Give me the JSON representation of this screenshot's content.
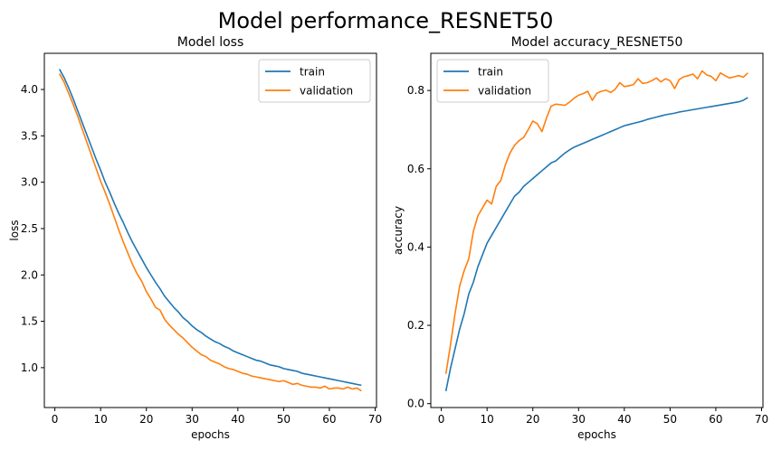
{
  "suptitle": "Model performance_RESNET50",
  "colors": {
    "train": "#1f77b4",
    "validation": "#ff7f0e",
    "axis": "#000000",
    "background": "#ffffff"
  },
  "chart_data": [
    {
      "type": "line",
      "title": "Model loss",
      "xlabel": "epochs",
      "ylabel": "loss",
      "xlim": [
        -2.3,
        70.3
      ],
      "ylim": [
        0.57,
        4.39
      ],
      "xticks": [
        0,
        10,
        20,
        30,
        40,
        50,
        60,
        70
      ],
      "xtick_labels": [
        "0",
        "10",
        "20",
        "30",
        "40",
        "50",
        "60",
        "70"
      ],
      "yticks": [
        1.0,
        1.5,
        2.0,
        2.5,
        3.0,
        3.5,
        4.0
      ],
      "ytick_labels": [
        "1.0",
        "1.5",
        "2.0",
        "2.5",
        "3.0",
        "3.5",
        "4.0"
      ],
      "grid": false,
      "legend": {
        "position": "top-right",
        "entries": [
          "train",
          "validation"
        ]
      },
      "x_start": 1,
      "series": [
        {
          "name": "train",
          "color": "#1f77b4",
          "values": [
            4.22,
            4.13,
            4.02,
            3.9,
            3.77,
            3.64,
            3.51,
            3.38,
            3.25,
            3.13,
            3.0,
            2.89,
            2.77,
            2.66,
            2.56,
            2.45,
            2.35,
            2.26,
            2.17,
            2.08,
            2.0,
            1.92,
            1.85,
            1.77,
            1.71,
            1.65,
            1.6,
            1.54,
            1.5,
            1.45,
            1.41,
            1.38,
            1.34,
            1.31,
            1.28,
            1.26,
            1.23,
            1.21,
            1.18,
            1.16,
            1.14,
            1.12,
            1.1,
            1.08,
            1.07,
            1.05,
            1.03,
            1.02,
            1.01,
            0.99,
            0.98,
            0.97,
            0.96,
            0.94,
            0.93,
            0.92,
            0.91,
            0.9,
            0.89,
            0.88,
            0.87,
            0.86,
            0.85,
            0.84,
            0.83,
            0.82,
            0.81
          ]
        },
        {
          "name": "validation",
          "color": "#ff7f0e",
          "values": [
            4.17,
            4.08,
            3.96,
            3.84,
            3.71,
            3.57,
            3.43,
            3.29,
            3.15,
            3.01,
            2.89,
            2.76,
            2.62,
            2.48,
            2.35,
            2.23,
            2.11,
            2.01,
            1.93,
            1.82,
            1.74,
            1.65,
            1.62,
            1.52,
            1.46,
            1.41,
            1.36,
            1.32,
            1.27,
            1.22,
            1.18,
            1.14,
            1.12,
            1.08,
            1.06,
            1.04,
            1.01,
            0.99,
            0.98,
            0.96,
            0.94,
            0.93,
            0.91,
            0.9,
            0.89,
            0.88,
            0.87,
            0.86,
            0.85,
            0.86,
            0.84,
            0.82,
            0.83,
            0.81,
            0.8,
            0.79,
            0.79,
            0.78,
            0.8,
            0.77,
            0.78,
            0.78,
            0.77,
            0.79,
            0.77,
            0.78,
            0.75
          ]
        }
      ]
    },
    {
      "type": "line",
      "title": "Model accuracy_RESNET50",
      "xlabel": "epochs",
      "ylabel": "accuracy",
      "xlim": [
        -2.3,
        70.3
      ],
      "ylim": [
        -0.01,
        0.895
      ],
      "xticks": [
        0,
        10,
        20,
        30,
        40,
        50,
        60,
        70
      ],
      "xtick_labels": [
        "0",
        "10",
        "20",
        "30",
        "40",
        "50",
        "60",
        "70"
      ],
      "yticks": [
        0.0,
        0.2,
        0.4,
        0.6,
        0.8
      ],
      "ytick_labels": [
        "0.0",
        "0.2",
        "0.4",
        "0.6",
        "0.8"
      ],
      "grid": false,
      "legend": {
        "position": "top-left",
        "entries": [
          "train",
          "validation"
        ]
      },
      "x_start": 1,
      "series": [
        {
          "name": "train",
          "color": "#1f77b4",
          "values": [
            0.032,
            0.09,
            0.14,
            0.19,
            0.23,
            0.28,
            0.31,
            0.35,
            0.38,
            0.41,
            0.43,
            0.45,
            0.47,
            0.49,
            0.51,
            0.53,
            0.54,
            0.555,
            0.565,
            0.575,
            0.585,
            0.595,
            0.605,
            0.615,
            0.62,
            0.63,
            0.64,
            0.648,
            0.655,
            0.66,
            0.665,
            0.67,
            0.675,
            0.68,
            0.685,
            0.69,
            0.695,
            0.7,
            0.705,
            0.71,
            0.713,
            0.716,
            0.719,
            0.722,
            0.726,
            0.729,
            0.732,
            0.735,
            0.738,
            0.74,
            0.742,
            0.745,
            0.747,
            0.749,
            0.751,
            0.753,
            0.755,
            0.757,
            0.759,
            0.761,
            0.763,
            0.765,
            0.767,
            0.769,
            0.771,
            0.775,
            0.782
          ]
        },
        {
          "name": "validation",
          "color": "#ff7f0e",
          "values": [
            0.076,
            0.15,
            0.23,
            0.3,
            0.34,
            0.37,
            0.44,
            0.48,
            0.5,
            0.52,
            0.51,
            0.555,
            0.57,
            0.61,
            0.64,
            0.66,
            0.672,
            0.68,
            0.7,
            0.722,
            0.715,
            0.695,
            0.73,
            0.76,
            0.765,
            0.764,
            0.762,
            0.77,
            0.78,
            0.788,
            0.792,
            0.798,
            0.775,
            0.793,
            0.798,
            0.801,
            0.795,
            0.803,
            0.82,
            0.81,
            0.812,
            0.815,
            0.83,
            0.818,
            0.82,
            0.825,
            0.832,
            0.822,
            0.83,
            0.825,
            0.805,
            0.828,
            0.835,
            0.838,
            0.842,
            0.83,
            0.85,
            0.84,
            0.836,
            0.825,
            0.845,
            0.838,
            0.832,
            0.835,
            0.838,
            0.834,
            0.845
          ]
        }
      ]
    }
  ]
}
